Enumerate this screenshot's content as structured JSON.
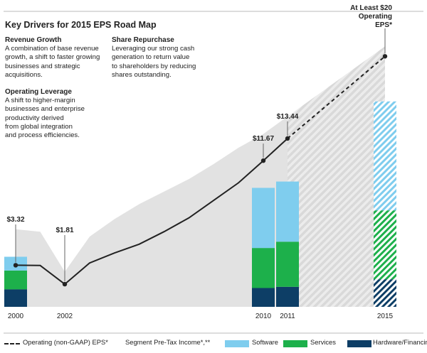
{
  "title": "Key Drivers for 2015 EPS Road Map",
  "drivers": [
    {
      "heading": "Revenue Growth",
      "body": "A combination of base revenue\ngrowth, a shift to faster growing\nbusinesses and strategic\nacquisitions."
    },
    {
      "heading": "Share Repurchase",
      "body": "Leveraging our strong cash\ngeneration to return value\nto shareholders by reducing\nshares outstanding."
    },
    {
      "heading": "Operating Leverage",
      "body": "A shift to higher-margin\nbusinesses and enterprise\nproductivity derived\nfrom global integration\nand process efficiencies."
    }
  ],
  "legend": {
    "eps_label": "Operating (non-GAAP) EPS*",
    "segment_title": "Segment Pre-Tax Income*,**",
    "software": "Software",
    "services": "Services",
    "hardware": "Hardware/Financing"
  },
  "colors": {
    "software": "#7fcdee",
    "services": "#1db04b",
    "hardware": "#0d3e66",
    "area": "#e2e2e2",
    "line": "#222222"
  },
  "chart_data": {
    "type": "bar",
    "x_ticks": [
      "2000",
      "2002",
      "2010",
      "2011",
      "2015"
    ],
    "bars": [
      {
        "year": "2000",
        "hardware": 1.4,
        "services": 1.5,
        "software": 1.1
      },
      {
        "year": "2010",
        "hardware": 1.5,
        "services": 3.2,
        "software": 4.8
      },
      {
        "year": "2011",
        "hardware": 1.6,
        "services": 3.6,
        "software": 4.8
      },
      {
        "year": "2015",
        "hardware": 2.2,
        "services": 5.5,
        "software": 8.7,
        "projected": true
      }
    ],
    "eps_line": [
      {
        "x": 2000,
        "y": 3.32
      },
      {
        "x": 2001,
        "y": 3.3
      },
      {
        "x": 2002,
        "y": 1.81
      },
      {
        "x": 2003,
        "y": 3.5
      },
      {
        "x": 2004,
        "y": 4.3
      },
      {
        "x": 2005,
        "y": 5.0
      },
      {
        "x": 2006,
        "y": 6.0
      },
      {
        "x": 2007,
        "y": 7.1
      },
      {
        "x": 2008,
        "y": 8.5
      },
      {
        "x": 2009,
        "y": 9.9
      },
      {
        "x": 2010,
        "y": 11.67
      },
      {
        "x": 2011,
        "y": 13.44
      },
      {
        "x": 2015,
        "y": 20.0,
        "projected": true
      }
    ],
    "area_upper": [
      {
        "x": 2000,
        "y": 6.2
      },
      {
        "x": 2001,
        "y": 6.0
      },
      {
        "x": 2002,
        "y": 2.8
      },
      {
        "x": 2003,
        "y": 5.6
      },
      {
        "x": 2004,
        "y": 7.0
      },
      {
        "x": 2005,
        "y": 8.2
      },
      {
        "x": 2006,
        "y": 9.2
      },
      {
        "x": 2007,
        "y": 10.2
      },
      {
        "x": 2008,
        "y": 11.4
      },
      {
        "x": 2009,
        "y": 12.7
      },
      {
        "x": 2010,
        "y": 13.8
      },
      {
        "x": 2011,
        "y": 15.2
      },
      {
        "x": 2015,
        "y": 20.8
      }
    ],
    "labels": [
      {
        "x": 2000,
        "value": 3.32,
        "text": "$3.32"
      },
      {
        "x": 2002,
        "value": 1.81,
        "text": "$1.81"
      },
      {
        "x": 2010,
        "value": 11.67,
        "text": "$11.67"
      },
      {
        "x": 2011,
        "value": 13.44,
        "text": "$13.44"
      },
      {
        "x": 2015,
        "value": 20.0,
        "lines": [
          "At Least $20",
          "Operating",
          "EPS*"
        ]
      }
    ],
    "ylim": [
      0,
      22
    ]
  }
}
